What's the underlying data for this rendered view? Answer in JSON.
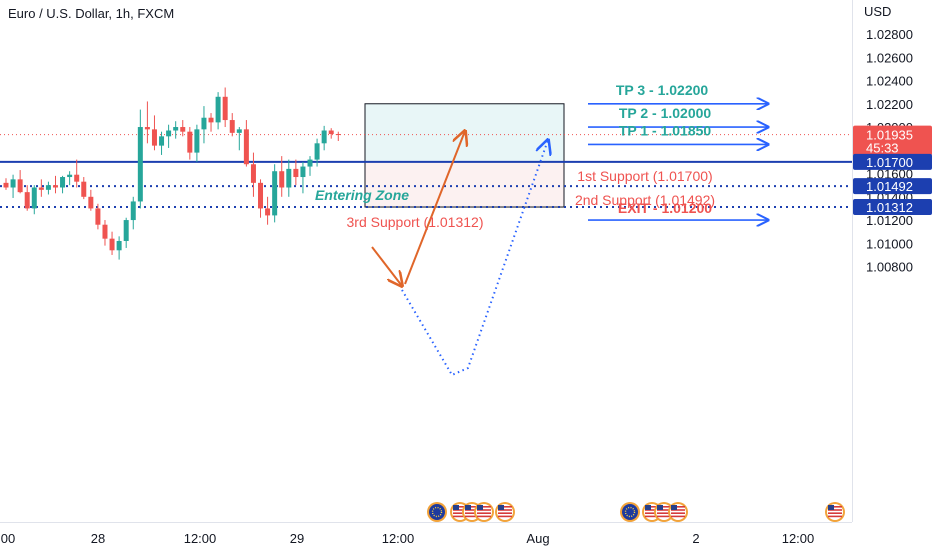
{
  "header": {
    "title": "Euro / U.S. Dollar, 1h, FXCM"
  },
  "price_axis": {
    "unit": "USD",
    "ticks": [
      "1.02800",
      "1.02600",
      "1.02400",
      "1.02200",
      "1.02000",
      "1.01800",
      "1.01600",
      "1.01400",
      "1.01200",
      "1.01000",
      "1.00800"
    ],
    "current_price": "1.01935",
    "countdown": "45:33",
    "markers": [
      "1.01700",
      "1.01492",
      "1.01312"
    ]
  },
  "time_axis": {
    "labels": [
      "00",
      "28",
      "12:00",
      "29",
      "12:00",
      "Aug",
      "2",
      "12:00"
    ]
  },
  "annotations": {
    "entering_zone": "Entering Zone",
    "support_1": "1st Support (1.01700)",
    "support_2": "2nd Support (1.01492)",
    "support_3": "3rd Support (1.01312)",
    "tp3": "TP 3 - 1.02200",
    "tp2": "TP 2 - 1.02000",
    "tp1": "TP 1 - 1.01850",
    "exit": "EXIT - 1.01200"
  },
  "colors": {
    "bull": "#26a69a",
    "bear": "#ef5350",
    "support_line": "#1c3fb0",
    "arrow_blue": "#2962ff",
    "arrow_orange": "#e0662a",
    "target_zone": "#e8f6f7",
    "stop_zone": "#fcf1f1",
    "current_price_line": "#ef5350"
  },
  "chart_data": {
    "type": "candlestick",
    "symbol": "EURUSD",
    "timeframe": "1h",
    "ylim": [
      1.0071,
      1.0293
    ],
    "y_ticks": [
      1.028,
      1.026,
      1.024,
      1.022,
      1.02,
      1.018,
      1.016,
      1.014,
      1.012,
      1.01,
      1.008
    ],
    "current_price": 1.01935,
    "levels": [
      {
        "label": "1st Support (1.01700)",
        "price": 1.017,
        "style": "solid"
      },
      {
        "label": "2nd Support (1.01492)",
        "price": 1.01492,
        "style": "dotted"
      },
      {
        "label": "3rd Support (1.01312)",
        "price": 1.01312,
        "style": "dotted"
      }
    ],
    "targets": [
      {
        "label": "TP 1 - 1.01850",
        "price": 1.0185
      },
      {
        "label": "TP 2 - 1.02000",
        "price": 1.02
      },
      {
        "label": "TP 3 - 1.02200",
        "price": 1.022
      }
    ],
    "exit": {
      "label": "EXIT - 1.01200",
      "price": 1.012
    },
    "zone": {
      "top": 1.022,
      "middle": 1.017,
      "bottom": 1.01312
    },
    "candles": [
      [
        1.0152,
        1.0156,
        1.0146,
        1.0148
      ],
      [
        1.0148,
        1.0159,
        1.0139,
        1.0155
      ],
      [
        1.0155,
        1.0163,
        1.0143,
        1.0144
      ],
      [
        1.0144,
        1.015,
        1.0128,
        1.013
      ],
      [
        1.013,
        1.015,
        1.0125,
        1.0148
      ],
      [
        1.0148,
        1.0155,
        1.014,
        1.0146
      ],
      [
        1.0146,
        1.0153,
        1.0142,
        1.015
      ],
      [
        1.015,
        1.0158,
        1.0143,
        1.0148
      ],
      [
        1.0148,
        1.0158,
        1.0143,
        1.0157
      ],
      [
        1.0157,
        1.0162,
        1.015,
        1.0159
      ],
      [
        1.0159,
        1.0172,
        1.0148,
        1.0153
      ],
      [
        1.0153,
        1.0157,
        1.0138,
        1.014
      ],
      [
        1.014,
        1.0146,
        1.0128,
        1.013
      ],
      [
        1.013,
        1.0134,
        1.0112,
        1.0116
      ],
      [
        1.0116,
        1.012,
        1.0098,
        1.0104
      ],
      [
        1.0104,
        1.011,
        1.009,
        1.0094
      ],
      [
        1.0094,
        1.0106,
        1.0086,
        1.0102
      ],
      [
        1.0102,
        1.0122,
        1.0096,
        1.012
      ],
      [
        1.012,
        1.014,
        1.0112,
        1.0136
      ],
      [
        1.0136,
        1.0215,
        1.013,
        1.02
      ],
      [
        1.02,
        1.0222,
        1.0186,
        1.0198
      ],
      [
        1.0198,
        1.021,
        1.018,
        1.0184
      ],
      [
        1.0184,
        1.0196,
        1.0176,
        1.0192
      ],
      [
        1.0192,
        1.0202,
        1.0182,
        1.0197
      ],
      [
        1.0197,
        1.0205,
        1.019,
        1.02
      ],
      [
        1.02,
        1.0206,
        1.0192,
        1.0196
      ],
      [
        1.0196,
        1.02,
        1.0172,
        1.0178
      ],
      [
        1.0178,
        1.0202,
        1.017,
        1.0198
      ],
      [
        1.0198,
        1.0218,
        1.0186,
        1.0208
      ],
      [
        1.0208,
        1.0212,
        1.0196,
        1.0204
      ],
      [
        1.0204,
        1.023,
        1.0198,
        1.0226
      ],
      [
        1.0226,
        1.0234,
        1.02,
        1.0206
      ],
      [
        1.0206,
        1.0212,
        1.0192,
        1.0195
      ],
      [
        1.0195,
        1.02,
        1.018,
        1.0198
      ],
      [
        1.0198,
        1.0206,
        1.0166,
        1.0168
      ],
      [
        1.0168,
        1.0178,
        1.014,
        1.0152
      ],
      [
        1.0152,
        1.0155,
        1.0122,
        1.013
      ],
      [
        1.013,
        1.014,
        1.0116,
        1.0124
      ],
      [
        1.0124,
        1.0168,
        1.0118,
        1.0162
      ],
      [
        1.0162,
        1.0175,
        1.014,
        1.0148
      ],
      [
        1.0148,
        1.0172,
        1.014,
        1.0164
      ],
      [
        1.0164,
        1.0172,
        1.015,
        1.0157
      ],
      [
        1.0157,
        1.017,
        1.0143,
        1.0166
      ],
      [
        1.0166,
        1.0175,
        1.0158,
        1.0172
      ],
      [
        1.0172,
        1.019,
        1.0166,
        1.0186
      ],
      [
        1.0186,
        1.0201,
        1.018,
        1.0197
      ],
      [
        1.0197,
        1.0199,
        1.019,
        1.0194
      ],
      [
        1.0194,
        1.0196,
        1.0188,
        1.01935
      ]
    ]
  },
  "event_icons": [
    {
      "group": 1,
      "flags": [
        "eu-flag-icon",
        "us-flag-icon",
        "us-flag-icon",
        "us-flag-icon",
        "us-flag-icon"
      ]
    },
    {
      "group": 2,
      "flags": [
        "eu-flag-icon",
        "us-flag-icon",
        "us-flag-icon",
        "us-flag-icon"
      ]
    },
    {
      "group": 3,
      "flags": [
        "us-flag-icon"
      ]
    }
  ]
}
